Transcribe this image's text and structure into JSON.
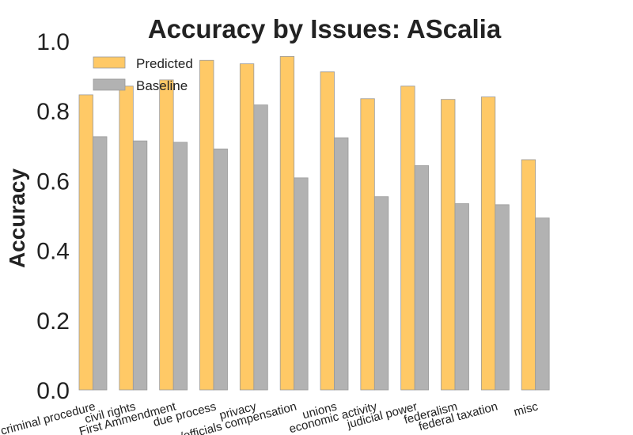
{
  "chart_data": {
    "type": "bar",
    "title": "Accuracy by Issues: AScalia",
    "xlabel": "",
    "ylabel": "Accuracy",
    "ylim": [
      0,
      1.0
    ],
    "yticks": [
      "0.0",
      "0.2",
      "0.4",
      "0.6",
      "0.8",
      "1.0"
    ],
    "grid": false,
    "legend_position": "top-left",
    "categories": [
      "criminal procedure",
      "civil rights",
      "First Ammendment",
      "due process",
      "privacy",
      "attorneys/officials compensation",
      "unions",
      "economic activity",
      "judicial power",
      "federalism",
      "federal taxation",
      "misc"
    ],
    "series": [
      {
        "name": "Predicted",
        "color": "#ffc966",
        "values": [
          0.846,
          0.871,
          0.889,
          0.945,
          0.935,
          0.956,
          0.912,
          0.835,
          0.871,
          0.833,
          0.84,
          0.66
        ]
      },
      {
        "name": "Baseline",
        "color": "#b2b2b2",
        "values": [
          0.726,
          0.714,
          0.71,
          0.691,
          0.817,
          0.608,
          0.723,
          0.554,
          0.643,
          0.534,
          0.531,
          0.493
        ]
      }
    ]
  }
}
